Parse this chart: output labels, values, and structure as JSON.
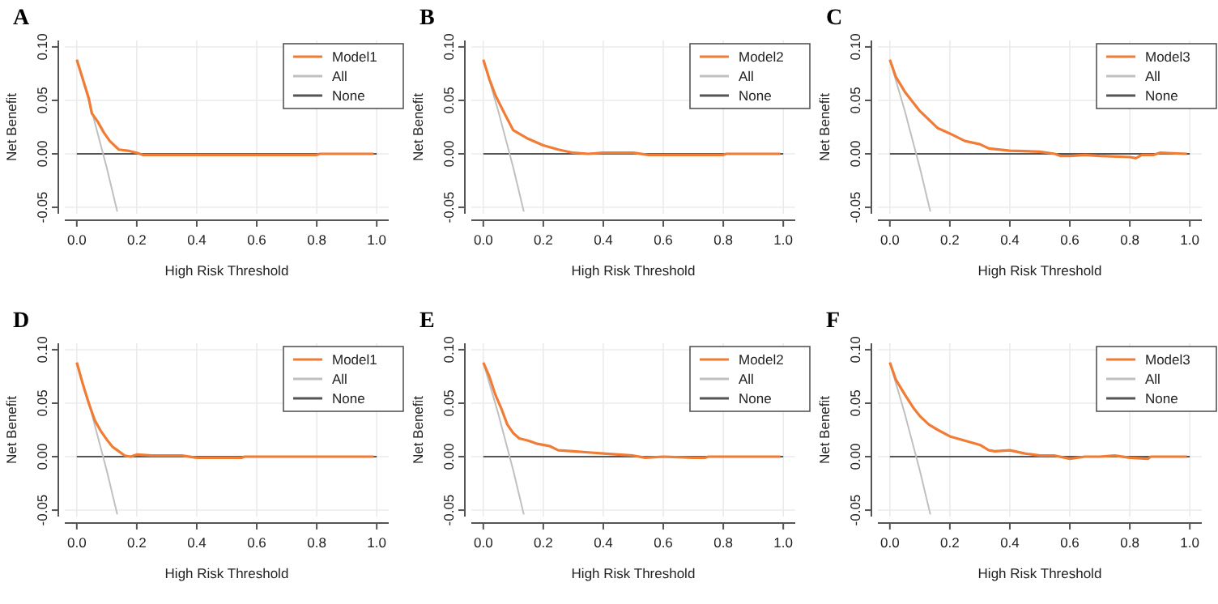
{
  "chart_data": [
    {
      "type": "line",
      "title": "A",
      "xlabel": "High Risk Threshold",
      "ylabel": "Net Benefit",
      "xlim": [
        -0.04,
        1.04
      ],
      "ylim": [
        -0.056,
        0.106
      ],
      "xticks": [
        {
          "value": 0,
          "label": "0.0"
        },
        {
          "value": 0.2,
          "label": "0.2"
        },
        {
          "value": 0.4,
          "label": "0.4"
        },
        {
          "value": 0.6,
          "label": "0.6"
        },
        {
          "value": 0.8,
          "label": "0.8"
        },
        {
          "value": 1,
          "label": "1.0"
        }
      ],
      "yticks": [
        {
          "value": -0.05,
          "label": "-0.05"
        },
        {
          "value": 0,
          "label": "0.00"
        },
        {
          "value": 0.05,
          "label": "0.05"
        },
        {
          "value": 0.1,
          "label": "0.10"
        }
      ],
      "grid": true,
      "legend": "top right",
      "series": [
        {
          "name": "Model1",
          "color": "#f07c35",
          "x": [
            0,
            0.02,
            0.04,
            0.05,
            0.07,
            0.09,
            0.11,
            0.14,
            0.17,
            0.2,
            0.22,
            0.3,
            0.4,
            0.5,
            0.6,
            0.7,
            0.8,
            0.81,
            0.99
          ],
          "values": [
            0.088,
            0.07,
            0.052,
            0.038,
            0.03,
            0.02,
            0.012,
            0.004,
            0.003,
            0.001,
            -0.001,
            -0.001,
            -0.001,
            -0.001,
            -0.001,
            -0.001,
            -0.001,
            0,
            0
          ]
        },
        {
          "name": "All",
          "color": "#c0c0c0",
          "x": [
            0,
            0.05,
            0.1,
            0.135
          ],
          "values": [
            0.088,
            0.04,
            -0.013,
            -0.054
          ]
        },
        {
          "name": "None",
          "color": "#555555",
          "x": [
            0,
            1
          ],
          "values": [
            0,
            0
          ]
        }
      ]
    },
    {
      "type": "line",
      "title": "B",
      "xlabel": "High Risk Threshold",
      "ylabel": "Net Benefit",
      "xlim": [
        -0.04,
        1.04
      ],
      "ylim": [
        -0.056,
        0.106
      ],
      "xticks": [
        {
          "value": 0,
          "label": "0.0"
        },
        {
          "value": 0.2,
          "label": "0.2"
        },
        {
          "value": 0.4,
          "label": "0.4"
        },
        {
          "value": 0.6,
          "label": "0.6"
        },
        {
          "value": 0.8,
          "label": "0.8"
        },
        {
          "value": 1,
          "label": "1.0"
        }
      ],
      "yticks": [
        {
          "value": -0.05,
          "label": "-0.05"
        },
        {
          "value": 0,
          "label": "0.00"
        },
        {
          "value": 0.05,
          "label": "0.05"
        },
        {
          "value": 0.1,
          "label": "0.10"
        }
      ],
      "grid": true,
      "legend": "top right",
      "series": [
        {
          "name": "Model2",
          "color": "#f07c35",
          "x": [
            0,
            0.02,
            0.04,
            0.07,
            0.1,
            0.15,
            0.2,
            0.25,
            0.3,
            0.35,
            0.4,
            0.45,
            0.5,
            0.55,
            0.65,
            0.8,
            0.81,
            0.99
          ],
          "values": [
            0.088,
            0.07,
            0.055,
            0.038,
            0.022,
            0.014,
            0.008,
            0.004,
            0.001,
            0,
            0.001,
            0.001,
            0.001,
            -0.001,
            -0.001,
            -0.001,
            0,
            0
          ]
        },
        {
          "name": "All",
          "color": "#c0c0c0",
          "x": [
            0,
            0.05,
            0.1,
            0.135
          ],
          "values": [
            0.088,
            0.04,
            -0.013,
            -0.054
          ]
        },
        {
          "name": "None",
          "color": "#555555",
          "x": [
            0,
            1
          ],
          "values": [
            0,
            0
          ]
        }
      ]
    },
    {
      "type": "line",
      "title": "C",
      "xlabel": "High Risk Threshold",
      "ylabel": "Net Benefit",
      "xlim": [
        -0.04,
        1.04
      ],
      "ylim": [
        -0.056,
        0.106
      ],
      "xticks": [
        {
          "value": 0,
          "label": "0.0"
        },
        {
          "value": 0.2,
          "label": "0.2"
        },
        {
          "value": 0.4,
          "label": "0.4"
        },
        {
          "value": 0.6,
          "label": "0.6"
        },
        {
          "value": 0.8,
          "label": "0.8"
        },
        {
          "value": 1,
          "label": "1.0"
        }
      ],
      "yticks": [
        {
          "value": -0.05,
          "label": "-0.05"
        },
        {
          "value": 0,
          "label": "0.00"
        },
        {
          "value": 0.05,
          "label": "0.05"
        },
        {
          "value": 0.1,
          "label": "0.10"
        }
      ],
      "grid": true,
      "legend": "top right",
      "series": [
        {
          "name": "Model3",
          "color": "#f07c35",
          "x": [
            0,
            0.02,
            0.05,
            0.1,
            0.13,
            0.16,
            0.2,
            0.25,
            0.3,
            0.33,
            0.4,
            0.5,
            0.55,
            0.57,
            0.6,
            0.65,
            0.7,
            0.8,
            0.82,
            0.84,
            0.88,
            0.9,
            0.99
          ],
          "values": [
            0.088,
            0.072,
            0.058,
            0.04,
            0.032,
            0.024,
            0.019,
            0.012,
            0.009,
            0.005,
            0.003,
            0.002,
            0,
            -0.002,
            -0.002,
            -0.001,
            -0.002,
            -0.003,
            -0.004,
            -0.001,
            -0.001,
            0.001,
            0
          ]
        },
        {
          "name": "All",
          "color": "#c0c0c0",
          "x": [
            0,
            0.05,
            0.1,
            0.135
          ],
          "values": [
            0.088,
            0.04,
            -0.013,
            -0.054
          ]
        },
        {
          "name": "None",
          "color": "#555555",
          "x": [
            0,
            1
          ],
          "values": [
            0,
            0
          ]
        }
      ]
    },
    {
      "type": "line",
      "title": "D",
      "xlabel": "High Risk Threshold",
      "ylabel": "Net Benefit",
      "xlim": [
        -0.04,
        1.04
      ],
      "ylim": [
        -0.056,
        0.106
      ],
      "xticks": [
        {
          "value": 0,
          "label": "0.0"
        },
        {
          "value": 0.2,
          "label": "0.2"
        },
        {
          "value": 0.4,
          "label": "0.4"
        },
        {
          "value": 0.6,
          "label": "0.6"
        },
        {
          "value": 0.8,
          "label": "0.8"
        },
        {
          "value": 1,
          "label": "1.0"
        }
      ],
      "yticks": [
        {
          "value": -0.05,
          "label": "-0.05"
        },
        {
          "value": 0,
          "label": "0.00"
        },
        {
          "value": 0.05,
          "label": "0.05"
        },
        {
          "value": 0.1,
          "label": "0.10"
        }
      ],
      "grid": true,
      "legend": "top right",
      "series": [
        {
          "name": "Model1",
          "color": "#f07c35",
          "x": [
            0,
            0.02,
            0.04,
            0.06,
            0.08,
            0.1,
            0.12,
            0.14,
            0.16,
            0.18,
            0.2,
            0.25,
            0.35,
            0.4,
            0.5,
            0.55,
            0.56,
            0.99
          ],
          "values": [
            0.088,
            0.068,
            0.05,
            0.034,
            0.024,
            0.016,
            0.009,
            0.005,
            0.001,
            0,
            0.002,
            0.001,
            0.001,
            -0.001,
            -0.001,
            -0.001,
            0,
            0
          ]
        },
        {
          "name": "All",
          "color": "#c0c0c0",
          "x": [
            0,
            0.05,
            0.1,
            0.135
          ],
          "values": [
            0.088,
            0.04,
            -0.013,
            -0.054
          ]
        },
        {
          "name": "None",
          "color": "#555555",
          "x": [
            0,
            1
          ],
          "values": [
            0,
            0
          ]
        }
      ]
    },
    {
      "type": "line",
      "title": "E",
      "xlabel": "High Risk Threshold",
      "ylabel": "Net Benefit",
      "xlim": [
        -0.04,
        1.04
      ],
      "ylim": [
        -0.056,
        0.106
      ],
      "xticks": [
        {
          "value": 0,
          "label": "0.0"
        },
        {
          "value": 0.2,
          "label": "0.2"
        },
        {
          "value": 0.4,
          "label": "0.4"
        },
        {
          "value": 0.6,
          "label": "0.6"
        },
        {
          "value": 0.8,
          "label": "0.8"
        },
        {
          "value": 1,
          "label": "1.0"
        }
      ],
      "yticks": [
        {
          "value": -0.05,
          "label": "-0.05"
        },
        {
          "value": 0,
          "label": "0.00"
        },
        {
          "value": 0.05,
          "label": "0.05"
        },
        {
          "value": 0.1,
          "label": "0.10"
        }
      ],
      "grid": true,
      "legend": "top right",
      "series": [
        {
          "name": "Model2",
          "color": "#f07c35",
          "x": [
            0,
            0.02,
            0.04,
            0.06,
            0.08,
            0.1,
            0.12,
            0.15,
            0.18,
            0.22,
            0.25,
            0.3,
            0.35,
            0.4,
            0.45,
            0.5,
            0.54,
            0.6,
            0.7,
            0.74,
            0.75,
            0.99
          ],
          "values": [
            0.088,
            0.075,
            0.058,
            0.045,
            0.03,
            0.022,
            0.017,
            0.015,
            0.012,
            0.01,
            0.006,
            0.005,
            0.004,
            0.003,
            0.002,
            0.001,
            -0.001,
            0,
            -0.001,
            -0.001,
            0,
            0
          ]
        },
        {
          "name": "All",
          "color": "#c0c0c0",
          "x": [
            0,
            0.05,
            0.1,
            0.135
          ],
          "values": [
            0.088,
            0.04,
            -0.013,
            -0.054
          ]
        },
        {
          "name": "None",
          "color": "#555555",
          "x": [
            0,
            1
          ],
          "values": [
            0,
            0
          ]
        }
      ]
    },
    {
      "type": "line",
      "title": "F",
      "xlabel": "High Risk Threshold",
      "ylabel": "Net Benefit",
      "xlim": [
        -0.04,
        1.04
      ],
      "ylim": [
        -0.056,
        0.106
      ],
      "xticks": [
        {
          "value": 0,
          "label": "0.0"
        },
        {
          "value": 0.2,
          "label": "0.2"
        },
        {
          "value": 0.4,
          "label": "0.4"
        },
        {
          "value": 0.6,
          "label": "0.6"
        },
        {
          "value": 0.8,
          "label": "0.8"
        },
        {
          "value": 1,
          "label": "1.0"
        }
      ],
      "yticks": [
        {
          "value": -0.05,
          "label": "-0.05"
        },
        {
          "value": 0,
          "label": "0.00"
        },
        {
          "value": 0.05,
          "label": "0.05"
        },
        {
          "value": 0.1,
          "label": "0.10"
        }
      ],
      "grid": true,
      "legend": "top right",
      "series": [
        {
          "name": "Model3",
          "color": "#f07c35",
          "x": [
            0,
            0.02,
            0.05,
            0.08,
            0.1,
            0.13,
            0.16,
            0.2,
            0.25,
            0.3,
            0.33,
            0.35,
            0.4,
            0.45,
            0.5,
            0.55,
            0.6,
            0.65,
            0.7,
            0.75,
            0.8,
            0.86,
            0.87,
            0.99
          ],
          "values": [
            0.088,
            0.072,
            0.058,
            0.045,
            0.038,
            0.03,
            0.025,
            0.019,
            0.015,
            0.011,
            0.006,
            0.005,
            0.006,
            0.003,
            0.001,
            0.001,
            -0.002,
            0,
            0,
            0.001,
            -0.001,
            -0.002,
            0,
            0
          ]
        },
        {
          "name": "All",
          "color": "#c0c0c0",
          "x": [
            0,
            0.05,
            0.1,
            0.135
          ],
          "values": [
            0.088,
            0.04,
            -0.013,
            -0.054
          ]
        },
        {
          "name": "None",
          "color": "#555555",
          "x": [
            0,
            1
          ],
          "values": [
            0,
            0
          ]
        }
      ]
    }
  ]
}
